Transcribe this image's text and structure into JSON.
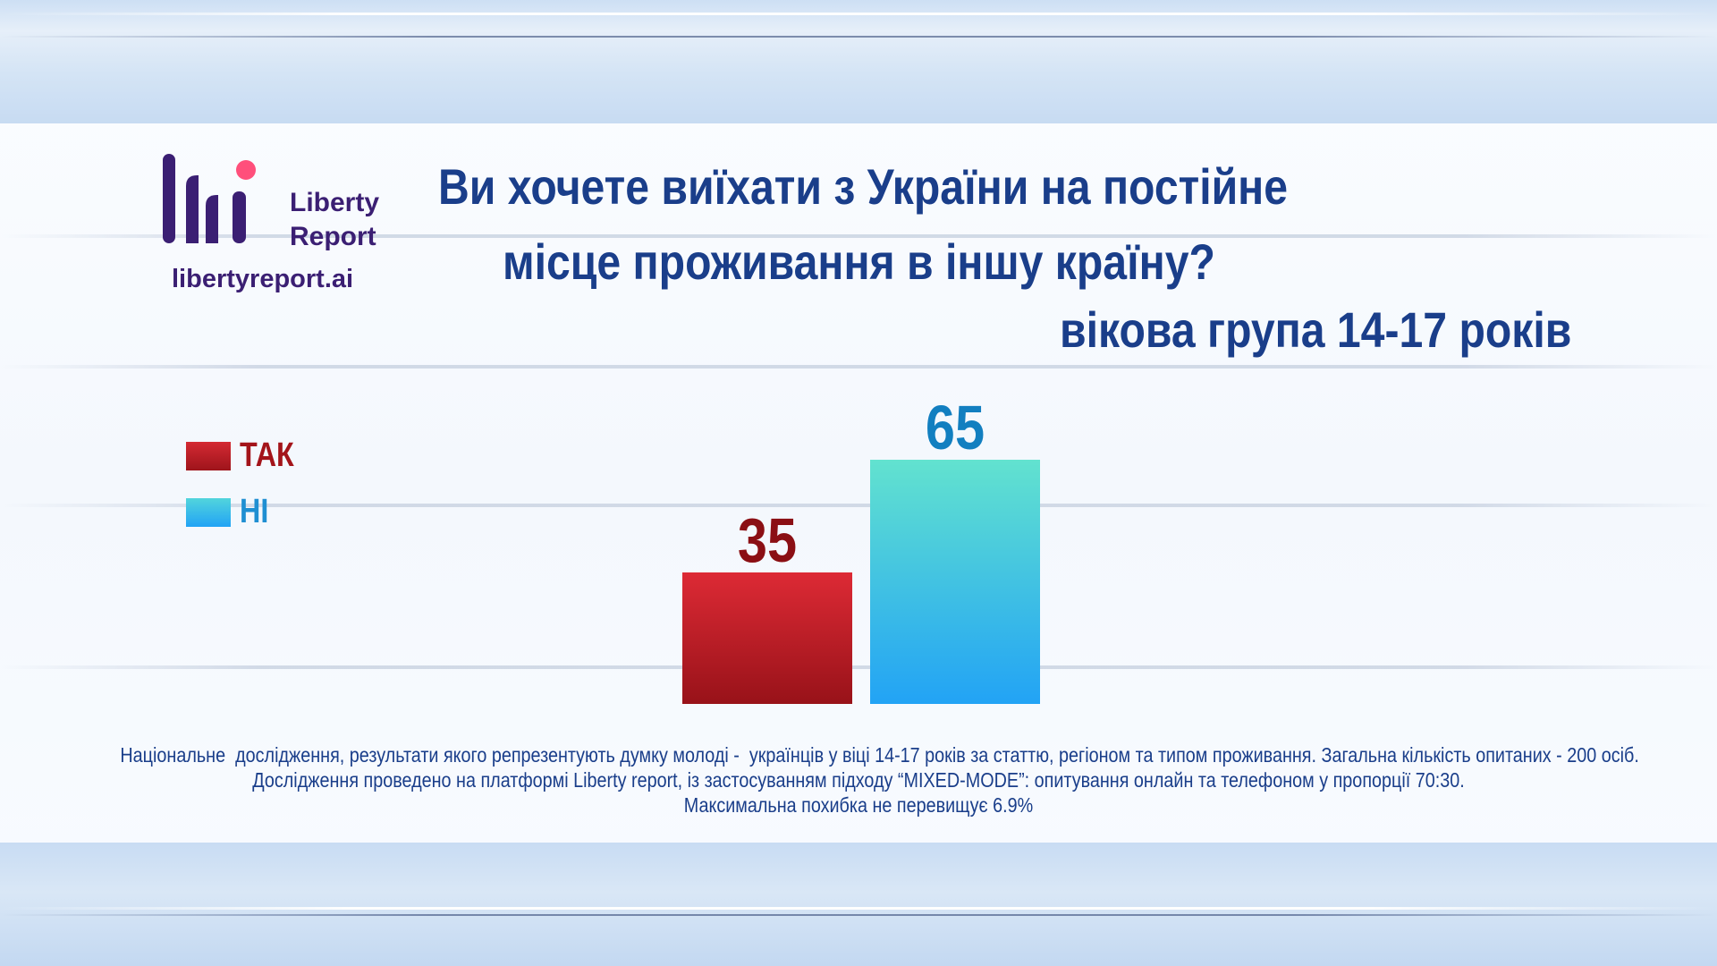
{
  "logo": {
    "name_line1": "Liberty",
    "name_line2": "Report",
    "url": "libertyreport.ai",
    "colors": {
      "primary": "#3b1f73",
      "accent": "#ff4f7b"
    }
  },
  "title": {
    "line1": "Ви хочете виїхати з України на постійне",
    "line2": "місце проживання в іншу країну?",
    "line3": "вікова група 14-17 років"
  },
  "colors": {
    "title": "#1a3e8a",
    "yes": "#c0222b",
    "yes_label": "#8b0f14",
    "no_top": "#62e2cf",
    "no_bottom": "#22a3f5",
    "no_label": "#127fc0"
  },
  "legend": [
    {
      "label": "ТАК",
      "color": "#c0222b",
      "text_color": "#a3141a"
    },
    {
      "label": "НІ",
      "color": "#33b3ef",
      "text_color": "#1f8fd2"
    }
  ],
  "chart_data": {
    "type": "bar",
    "categories": [
      "ТАК",
      "НІ"
    ],
    "values": [
      35,
      65
    ],
    "ylim": [
      0,
      100
    ],
    "grid": false,
    "legend_position": "left",
    "data_labels": [
      "35",
      "65"
    ]
  },
  "footnote": {
    "line1": "Національне  дослідження, результати якого репрезентують думку молоді -  українців у віці 14-17 років за статтю, регіоном та типом проживання. Загальна кількість опитаних - 200 осіб.",
    "line2": "Дослідження проведено на платформі Liberty report, із застосуванням підходу “MIXED-MODE”: опитування онлайн та телефоном у пропорції 70:30.",
    "line3": "Максимальна похибка не перевищує 6.9%"
  }
}
